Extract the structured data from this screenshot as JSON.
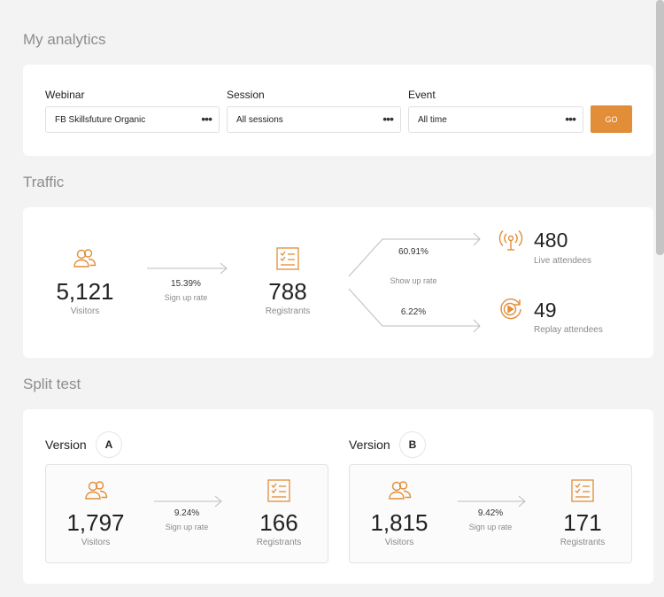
{
  "page_title": "My analytics",
  "filters": {
    "webinar": {
      "label": "Webinar",
      "value": "FB Skillsfuture Organic"
    },
    "session": {
      "label": "Session",
      "value": "All sessions"
    },
    "event": {
      "label": "Event",
      "value": "All time"
    },
    "go_label": "GO",
    "more_glyph": "•••"
  },
  "traffic": {
    "title": "Traffic",
    "visitors": {
      "value": "5,121",
      "label": "Visitors"
    },
    "signup": {
      "pct": "15.39%",
      "label": "Sign up rate"
    },
    "registrants": {
      "value": "788",
      "label": "Registrants"
    },
    "show_up": {
      "live_pct": "60.91%",
      "replay_pct": "6.22%",
      "label": "Show up rate"
    },
    "live": {
      "value": "480",
      "label": "Live attendees"
    },
    "replay": {
      "value": "49",
      "label": "Replay attendees"
    }
  },
  "split_test": {
    "title": "Split test",
    "versions": [
      {
        "label": "Version",
        "letter": "A",
        "visitors": {
          "value": "1,797",
          "label": "Visitors"
        },
        "signup": {
          "pct": "9.24%",
          "label": "Sign up rate"
        },
        "registrants": {
          "value": "166",
          "label": "Registrants"
        }
      },
      {
        "label": "Version",
        "letter": "B",
        "visitors": {
          "value": "1,815",
          "label": "Visitors"
        },
        "signup": {
          "pct": "9.42%",
          "label": "Sign up rate"
        },
        "registrants": {
          "value": "171",
          "label": "Registrants"
        }
      }
    ]
  },
  "colors": {
    "accent": "#e28d37",
    "background": "#f3f3f3"
  },
  "icons": {
    "visitors": "users-icon",
    "registrants": "checklist-icon",
    "live": "broadcast-icon",
    "replay": "replay-icon"
  }
}
